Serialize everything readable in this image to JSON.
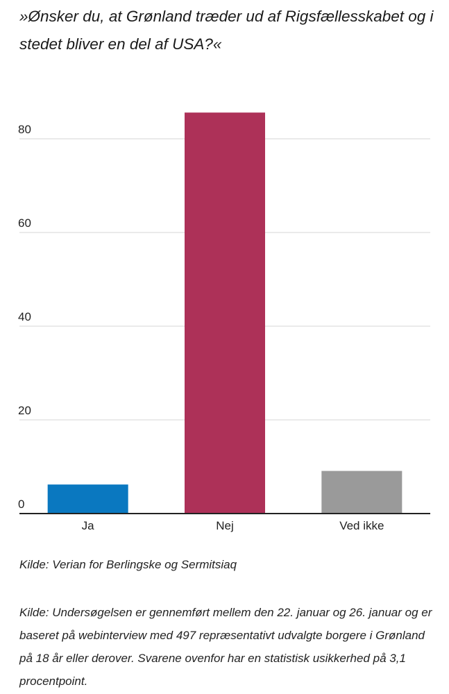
{
  "chart_data": {
    "type": "bar",
    "title": "»Ønsker du, at Grønland træder ud af Rigsfællesskabet og i stedet bliver en del af USA?«",
    "categories": [
      "Ja",
      "Nej",
      "Ved ikke"
    ],
    "values": [
      6.2,
      85.6,
      9.1
    ],
    "colors": [
      "#0a78c0",
      "#ad3158",
      "#9a9a9a"
    ],
    "yticks": [
      0,
      20,
      40,
      60,
      80
    ],
    "ytick_labels": [
      "0",
      "20",
      "40",
      "60",
      "80"
    ],
    "ylim": [
      0,
      90
    ],
    "xlabel": "",
    "ylabel": "",
    "grid": true,
    "gridColor": "#d4d4d4",
    "axisColor": "#222222"
  },
  "source": "Kilde: Verian for Berlingske og Sermitsiaq",
  "note": "Kilde: Undersøgelsen er gennemført mellem den 22. januar og 26. januar og er baseret på webinterview med 497 repræsentativt udvalgte borgere i Grønland på 18 år eller derover. Svarene ovenfor har en statistisk usikkerhed på 3,1 procentpoint."
}
